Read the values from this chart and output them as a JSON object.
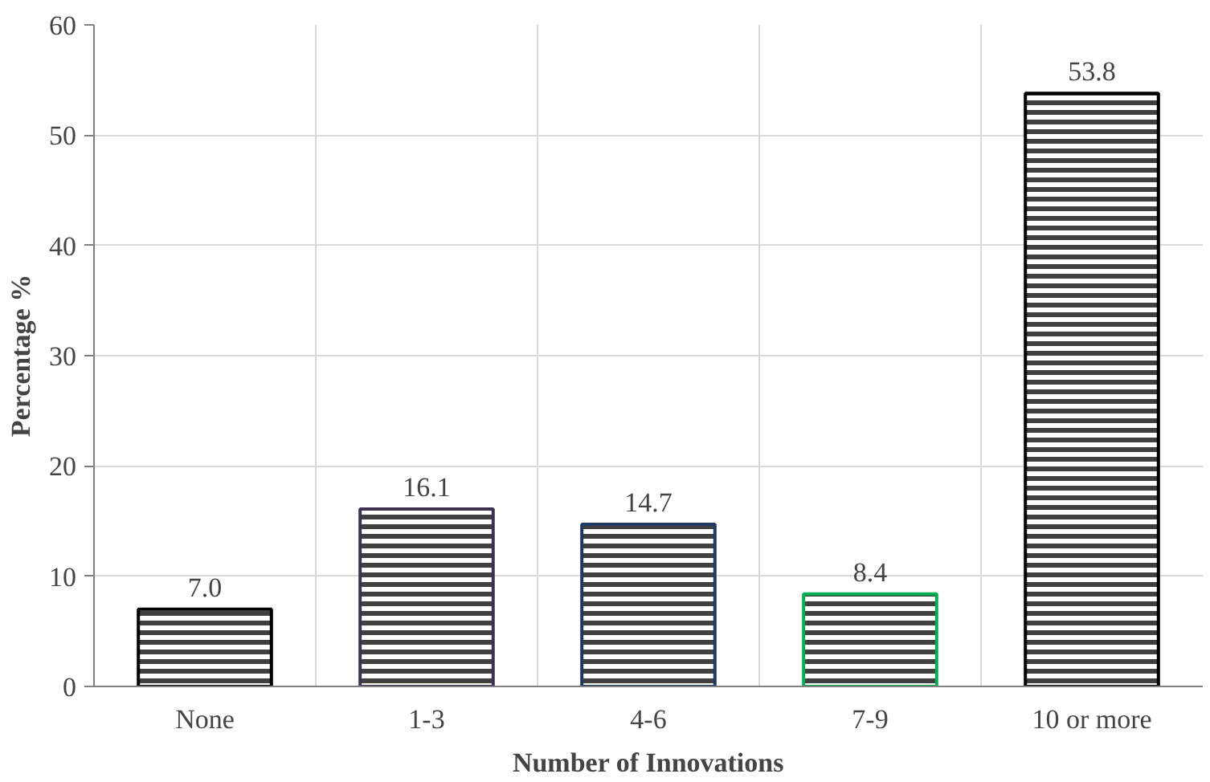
{
  "chart_data": {
    "type": "bar",
    "xlabel": "Number of Innovations",
    "ylabel": "Percentage %",
    "categories": [
      "None",
      "1-3",
      "4-6",
      "7-9",
      "10 or more"
    ],
    "values": [
      7.0,
      16.1,
      14.7,
      8.4,
      53.8
    ],
    "value_labels": [
      "7.0",
      "16.1",
      "14.7",
      "8.4",
      "53.8"
    ],
    "colors": [
      "#000000",
      "#3f3151",
      "#1f3864",
      "#00b050",
      "#000000"
    ],
    "ylim": [
      0,
      60
    ],
    "yticks": [
      0,
      10,
      20,
      30,
      40,
      50,
      60
    ],
    "grid": true
  }
}
